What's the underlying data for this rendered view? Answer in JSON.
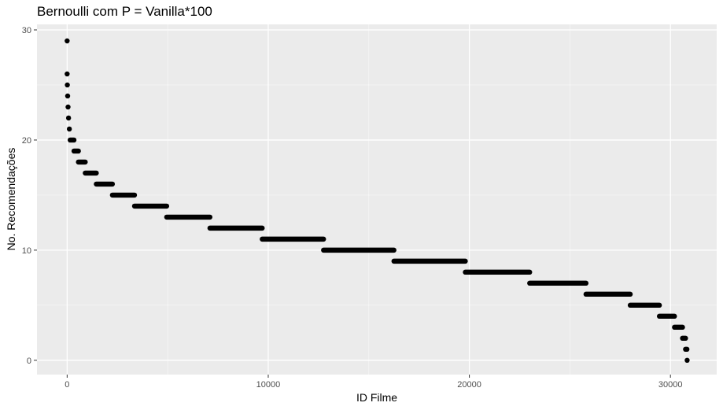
{
  "chart_data": {
    "type": "scatter",
    "title": "Bernoulli com P = Vanilla*100",
    "xlabel": "ID Filme",
    "ylabel": "No. Recomendações",
    "xlim": [
      -1500,
      32300
    ],
    "ylim": [
      -1.3,
      30.5
    ],
    "x_ticks": [
      0,
      10000,
      20000,
      30000
    ],
    "x_tick_labels": [
      "0",
      "10000",
      "20000",
      "30000"
    ],
    "y_ticks": [
      0,
      10,
      20,
      30
    ],
    "y_tick_labels": [
      "0",
      "10",
      "20",
      "30"
    ],
    "grid": true,
    "legend": "none",
    "colors": {
      "panel_background": "#ebebeb",
      "grid_major": "#ffffff",
      "point": "#000000"
    },
    "points": [
      {
        "x": 0,
        "y": 29
      },
      {
        "x": 0,
        "y": 26
      },
      {
        "x": 10,
        "y": 25
      },
      {
        "x": 25,
        "y": 24
      },
      {
        "x": 45,
        "y": 23
      },
      {
        "x": 70,
        "y": 22
      },
      {
        "x": 110,
        "y": 21
      }
    ],
    "runs": [
      {
        "y": 20,
        "x_start": 150,
        "x_end": 340
      },
      {
        "y": 19,
        "x_start": 340,
        "x_end": 560
      },
      {
        "y": 18,
        "x_start": 560,
        "x_end": 900
      },
      {
        "y": 17,
        "x_start": 900,
        "x_end": 1450
      },
      {
        "y": 16,
        "x_start": 1450,
        "x_end": 2250
      },
      {
        "y": 15,
        "x_start": 2250,
        "x_end": 3350
      },
      {
        "y": 14,
        "x_start": 3350,
        "x_end": 4950
      },
      {
        "y": 13,
        "x_start": 4950,
        "x_end": 7100
      },
      {
        "y": 12,
        "x_start": 7100,
        "x_end": 9700
      },
      {
        "y": 11,
        "x_start": 9700,
        "x_end": 12750
      },
      {
        "y": 10,
        "x_start": 12750,
        "x_end": 16250
      },
      {
        "y": 9,
        "x_start": 16250,
        "x_end": 19800
      },
      {
        "y": 8,
        "x_start": 19800,
        "x_end": 23000
      },
      {
        "y": 7,
        "x_start": 23000,
        "x_end": 25800
      },
      {
        "y": 6,
        "x_start": 25800,
        "x_end": 28000
      },
      {
        "y": 5,
        "x_start": 28000,
        "x_end": 29450
      },
      {
        "y": 4,
        "x_start": 29450,
        "x_end": 30200
      },
      {
        "y": 3,
        "x_start": 30200,
        "x_end": 30600
      },
      {
        "y": 2,
        "x_start": 30600,
        "x_end": 30750
      },
      {
        "y": 1,
        "x_start": 30750,
        "x_end": 30820
      }
    ],
    "end_points": [
      {
        "x": 30830,
        "y": 0
      }
    ]
  }
}
